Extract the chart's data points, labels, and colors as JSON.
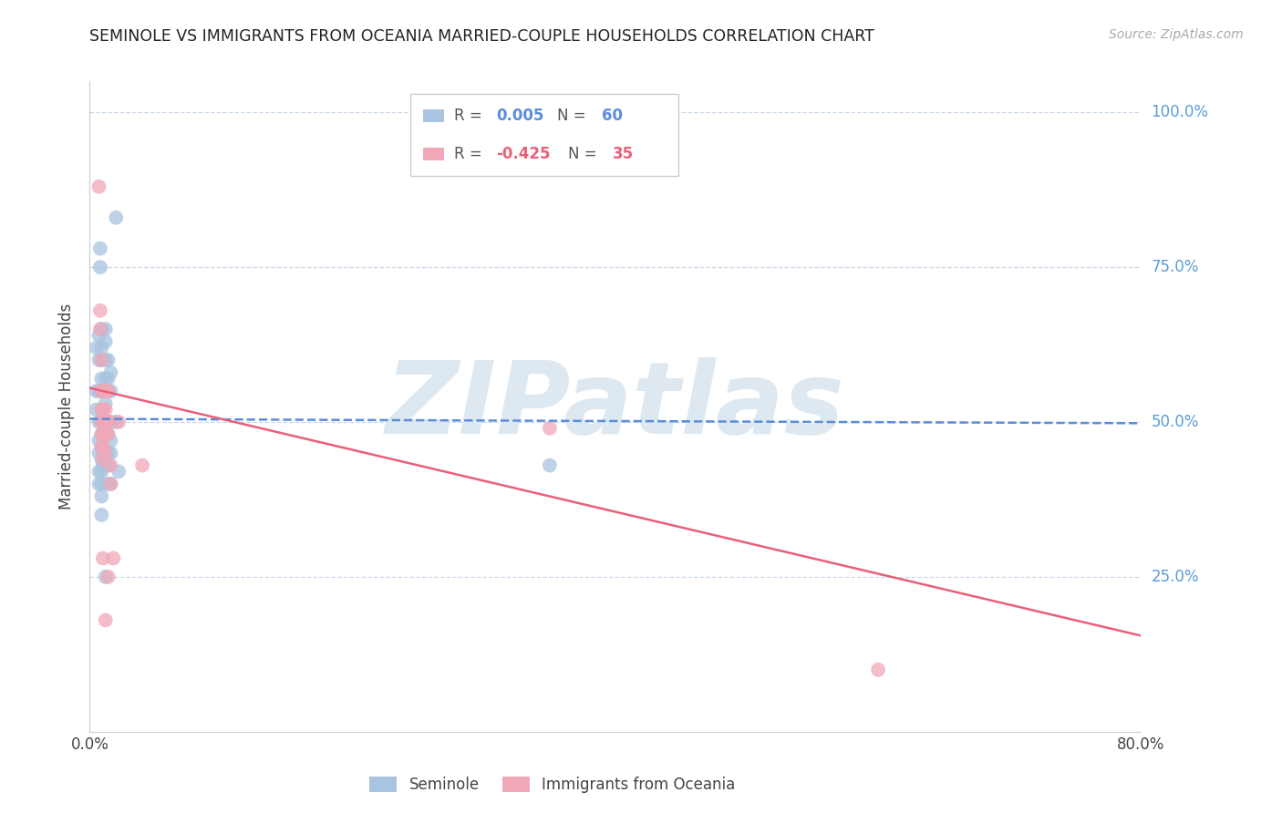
{
  "title": "SEMINOLE VS IMMIGRANTS FROM OCEANIA MARRIED-COUPLE HOUSEHOLDS CORRELATION CHART",
  "source": "Source: ZipAtlas.com",
  "ylabel": "Married-couple Households",
  "xlim": [
    0.0,
    0.8
  ],
  "ylim": [
    0.0,
    1.05
  ],
  "blue_color": "#a8c4e0",
  "pink_color": "#f0a8b8",
  "blue_line_color": "#5b8dd9",
  "pink_line_color": "#e8607a",
  "watermark": "ZIPatlas",
  "background_color": "#ffffff",
  "grid_color": "#c8d8e8",
  "right_label_color": "#5b9bd5",
  "blue_scatter": [
    [
      0.005,
      0.62
    ],
    [
      0.005,
      0.55
    ],
    [
      0.005,
      0.52
    ],
    [
      0.007,
      0.64
    ],
    [
      0.007,
      0.6
    ],
    [
      0.007,
      0.55
    ],
    [
      0.007,
      0.5
    ],
    [
      0.007,
      0.47
    ],
    [
      0.007,
      0.45
    ],
    [
      0.007,
      0.42
    ],
    [
      0.007,
      0.4
    ],
    [
      0.008,
      0.78
    ],
    [
      0.008,
      0.75
    ],
    [
      0.009,
      0.65
    ],
    [
      0.009,
      0.62
    ],
    [
      0.009,
      0.6
    ],
    [
      0.009,
      0.57
    ],
    [
      0.009,
      0.55
    ],
    [
      0.009,
      0.52
    ],
    [
      0.009,
      0.5
    ],
    [
      0.009,
      0.48
    ],
    [
      0.009,
      0.46
    ],
    [
      0.009,
      0.44
    ],
    [
      0.009,
      0.42
    ],
    [
      0.009,
      0.4
    ],
    [
      0.009,
      0.38
    ],
    [
      0.009,
      0.35
    ],
    [
      0.01,
      0.5
    ],
    [
      0.01,
      0.48
    ],
    [
      0.01,
      0.45
    ],
    [
      0.01,
      0.43
    ],
    [
      0.012,
      0.65
    ],
    [
      0.012,
      0.63
    ],
    [
      0.012,
      0.6
    ],
    [
      0.012,
      0.57
    ],
    [
      0.012,
      0.55
    ],
    [
      0.012,
      0.53
    ],
    [
      0.012,
      0.5
    ],
    [
      0.012,
      0.48
    ],
    [
      0.012,
      0.45
    ],
    [
      0.012,
      0.43
    ],
    [
      0.012,
      0.25
    ],
    [
      0.014,
      0.6
    ],
    [
      0.014,
      0.57
    ],
    [
      0.014,
      0.55
    ],
    [
      0.014,
      0.5
    ],
    [
      0.014,
      0.48
    ],
    [
      0.014,
      0.45
    ],
    [
      0.014,
      0.43
    ],
    [
      0.014,
      0.4
    ],
    [
      0.016,
      0.58
    ],
    [
      0.016,
      0.55
    ],
    [
      0.016,
      0.5
    ],
    [
      0.016,
      0.47
    ],
    [
      0.016,
      0.45
    ],
    [
      0.016,
      0.4
    ],
    [
      0.02,
      0.83
    ],
    [
      0.02,
      0.5
    ],
    [
      0.022,
      0.42
    ],
    [
      0.35,
      0.43
    ]
  ],
  "pink_scatter": [
    [
      0.007,
      0.88
    ],
    [
      0.008,
      0.68
    ],
    [
      0.008,
      0.65
    ],
    [
      0.009,
      0.6
    ],
    [
      0.009,
      0.55
    ],
    [
      0.009,
      0.52
    ],
    [
      0.009,
      0.5
    ],
    [
      0.009,
      0.48
    ],
    [
      0.009,
      0.46
    ],
    [
      0.01,
      0.55
    ],
    [
      0.01,
      0.52
    ],
    [
      0.01,
      0.5
    ],
    [
      0.01,
      0.48
    ],
    [
      0.01,
      0.46
    ],
    [
      0.01,
      0.44
    ],
    [
      0.01,
      0.28
    ],
    [
      0.012,
      0.55
    ],
    [
      0.012,
      0.52
    ],
    [
      0.012,
      0.5
    ],
    [
      0.012,
      0.48
    ],
    [
      0.012,
      0.45
    ],
    [
      0.012,
      0.18
    ],
    [
      0.014,
      0.55
    ],
    [
      0.014,
      0.5
    ],
    [
      0.014,
      0.48
    ],
    [
      0.014,
      0.25
    ],
    [
      0.016,
      0.43
    ],
    [
      0.016,
      0.4
    ],
    [
      0.018,
      0.28
    ],
    [
      0.022,
      0.5
    ],
    [
      0.04,
      0.43
    ],
    [
      0.35,
      0.49
    ],
    [
      0.6,
      0.1
    ]
  ],
  "blue_line_x": [
    0.0,
    0.8
  ],
  "blue_line_y": [
    0.505,
    0.498
  ],
  "pink_line_x": [
    0.0,
    0.8
  ],
  "pink_line_y": [
    0.555,
    0.155
  ]
}
